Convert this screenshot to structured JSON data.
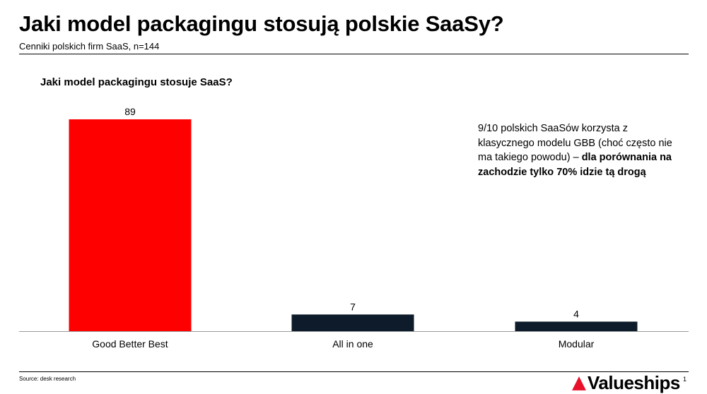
{
  "header": {
    "title": "Jaki model packagingu stosują polskie SaaSy?",
    "subtitle": "Cenniki polskich firm SaaS, n=144"
  },
  "chart_data": {
    "type": "bar",
    "title": "Jaki model packagingu stosuje SaaS?",
    "categories": [
      "Good Better Best",
      "All in one",
      "Modular"
    ],
    "values": [
      89,
      7,
      4
    ],
    "colors": [
      "#ff0000",
      "#0d1b2a",
      "#0d1b2a"
    ],
    "ylim": [
      0,
      89
    ],
    "grid": false,
    "legend": "none"
  },
  "annotation": {
    "normal": "9/10 polskich SaaSów korzysta z klasycznego modelu GBB (choć często nie ma takiego powodu) –",
    "bold": "dla porównania na zachodzie tylko 70% idzie tą drogą"
  },
  "footer": {
    "source": "Source: desk research",
    "logo_text": "Valueships",
    "page_number": "1",
    "brand_color": "#e8102a"
  }
}
